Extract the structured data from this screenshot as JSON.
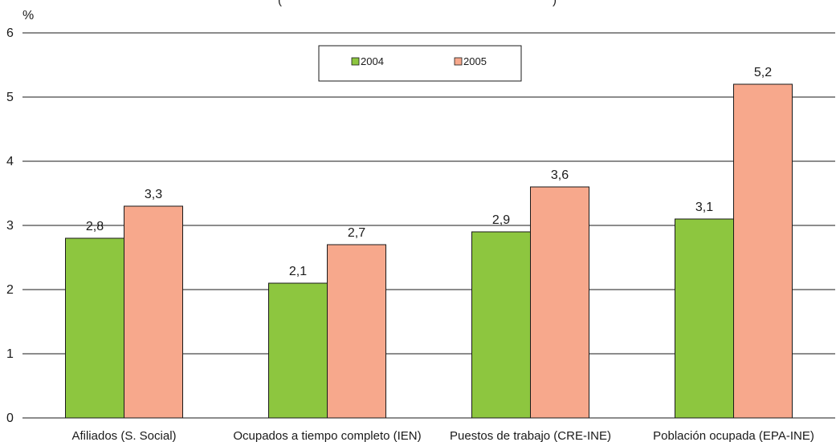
{
  "chart_data": {
    "type": "bar",
    "title": "(",
    "title_end": ")",
    "ylabel": "%",
    "ylim": [
      0,
      6
    ],
    "yticks": [
      "0",
      "1",
      "2",
      "3",
      "4",
      "5",
      "6"
    ],
    "grid": true,
    "legend_position": "top-center",
    "categories": [
      "Afiliados (S. Social)",
      "Ocupados a tiempo completo (IEN)",
      "Puestos de trabajo (CRE-INE)",
      "Población ocupada (EPA-INE)"
    ],
    "series": [
      {
        "name": "2004",
        "color": "#8dc63f",
        "values": [
          2.8,
          2.1,
          2.9,
          3.1
        ],
        "labels": [
          "2,8",
          "2,1",
          "2,9",
          "3,1"
        ]
      },
      {
        "name": "2005",
        "color": "#f7a88c",
        "values": [
          3.3,
          2.7,
          3.6,
          5.2
        ],
        "labels": [
          "3,3",
          "2,7",
          "3,6",
          "5,2"
        ]
      }
    ]
  }
}
